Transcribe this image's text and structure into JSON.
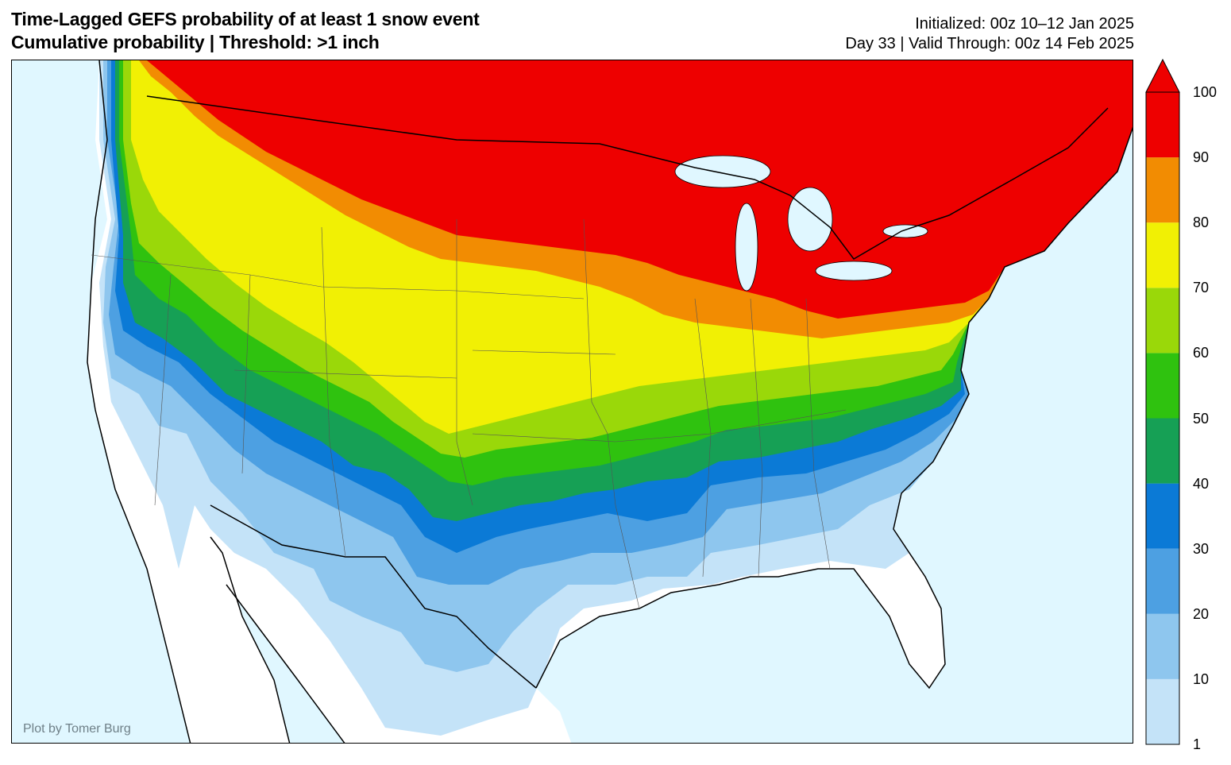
{
  "title": {
    "line1": "Time-Lagged GEFS probability of at least 1 snow event",
    "line2": "Cumulative probability | Threshold: >1 inch"
  },
  "info": {
    "initialized": "Initialized: 00z 10–12 Jan 2025",
    "valid": "Day 33 | Valid Through: 00z 14 Feb 2025"
  },
  "credit": "Plot by Tomer Burg",
  "colorbar": {
    "tick_labels": [
      "100",
      "90",
      "80",
      "70",
      "60",
      "50",
      "40",
      "30",
      "20",
      "10",
      "1"
    ],
    "bins": [
      {
        "range": "1-10",
        "color": "#c4e3f8"
      },
      {
        "range": "10-20",
        "color": "#8ec6ee"
      },
      {
        "range": "20-30",
        "color": "#4da0e2"
      },
      {
        "range": "30-40",
        "color": "#0b7ad6"
      },
      {
        "range": "40-50",
        "color": "#16a055"
      },
      {
        "range": "50-60",
        "color": "#2fc20f"
      },
      {
        "range": "60-70",
        "color": "#9ad809"
      },
      {
        "range": "70-80",
        "color": "#f1f004"
      },
      {
        "range": "80-90",
        "color": "#f28c02"
      },
      {
        "range": "90-100",
        "color": "#ee0000"
      }
    ],
    "extend": "max"
  },
  "colors": {
    "ocean": "#e0f7ff",
    "land_below_1": "#ffffff"
  }
}
